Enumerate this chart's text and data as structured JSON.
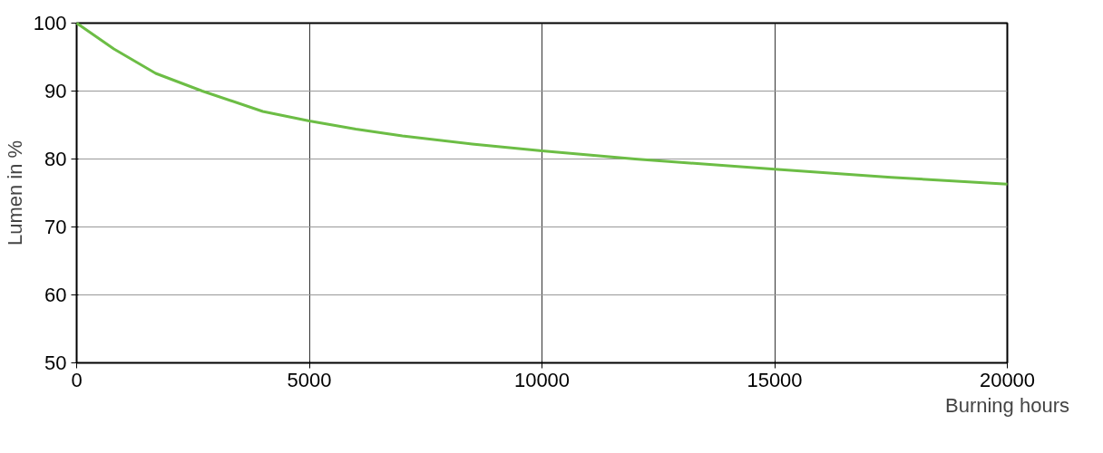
{
  "chart_data": {
    "type": "line",
    "xlabel": "Burning hours",
    "ylabel": "Lumen in %",
    "x": [
      0,
      800,
      1700,
      2700,
      4000,
      5000,
      6000,
      7000,
      8500,
      10000,
      12000,
      15000,
      17500,
      20000
    ],
    "series": [
      {
        "color": "#6cbd45",
        "values": [
          100,
          96.2,
          92.6,
          90,
          87,
          85.6,
          84.4,
          83.4,
          82.2,
          81.2,
          80,
          78.5,
          77.3,
          76.3
        ]
      }
    ],
    "xlim": [
      0,
      20000
    ],
    "ylim": [
      50,
      100
    ],
    "xticks": [
      0,
      5000,
      10000,
      15000,
      20000
    ],
    "yticks": [
      50,
      60,
      70,
      80,
      90,
      100
    ],
    "grid": true,
    "marker": "none",
    "line_style": "solid"
  }
}
